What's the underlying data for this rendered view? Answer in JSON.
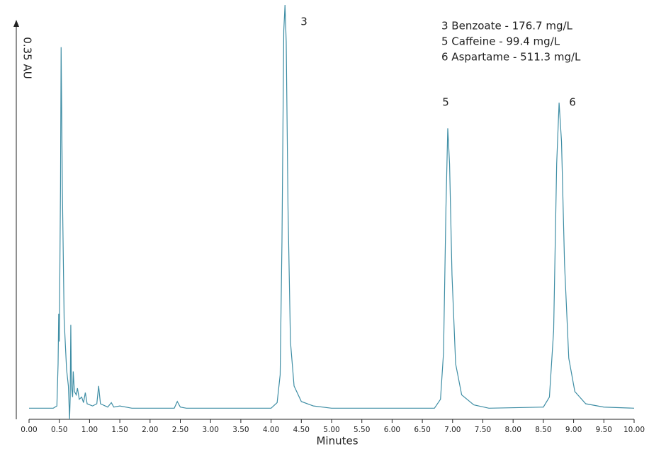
{
  "chart_data": {
    "type": "line",
    "y_label": "0.35 AU",
    "x_label": "Minutes",
    "color": "#3f8ea5",
    "xlim": [
      0,
      10
    ],
    "ylim": [
      -0.01,
      0.37
    ],
    "xticks": [
      {
        "value": 0,
        "label": "0.00"
      },
      {
        "value": 0.5,
        "label": "0.50"
      },
      {
        "value": 1,
        "label": "1.00"
      },
      {
        "value": 1.5,
        "label": "1.50"
      },
      {
        "value": 2,
        "label": "2.00"
      },
      {
        "value": 2.5,
        "label": "2.50"
      },
      {
        "value": 3,
        "label": "3.00"
      },
      {
        "value": 3.5,
        "label": "3.50"
      },
      {
        "value": 4,
        "label": "4.00"
      },
      {
        "value": 4.5,
        "label": "4.50"
      },
      {
        "value": 5,
        "label": "5.00"
      },
      {
        "value": 5.5,
        "label": "5.50"
      },
      {
        "value": 6,
        "label": "6.00"
      },
      {
        "value": 6.5,
        "label": "6.50"
      },
      {
        "value": 7,
        "label": "7.00"
      },
      {
        "value": 7.5,
        "label": "7.50"
      },
      {
        "value": 8,
        "label": "8.00"
      },
      {
        "value": 8.5,
        "label": "8.50"
      },
      {
        "value": 9,
        "label": "9.00"
      },
      {
        "value": 9.5,
        "label": "9.50"
      },
      {
        "value": 10,
        "label": "10.00"
      }
    ],
    "peak_labels": [
      "3",
      "5",
      "6"
    ],
    "notes": [
      "3 Benzoate - 176.7 mg/L",
      "5 Caffeine - 99.4 mg/L",
      "6 Aspartame - 511.3 mg/L"
    ],
    "x": [
      0.0,
      0.4,
      0.46,
      0.48,
      0.49,
      0.5,
      0.52,
      0.53,
      0.55,
      0.58,
      0.62,
      0.65,
      0.67,
      0.68,
      0.69,
      0.7,
      0.72,
      0.73,
      0.75,
      0.78,
      0.8,
      0.83,
      0.87,
      0.9,
      0.93,
      0.96,
      1.05,
      1.12,
      1.15,
      1.18,
      1.3,
      1.36,
      1.4,
      1.5,
      1.7,
      2.4,
      2.45,
      2.5,
      2.6,
      4.0,
      4.1,
      4.15,
      4.18,
      4.21,
      4.23,
      4.25,
      4.28,
      4.32,
      4.38,
      4.5,
      4.7,
      5.0,
      6.7,
      6.8,
      6.85,
      6.89,
      6.92,
      6.95,
      6.99,
      7.05,
      7.15,
      7.35,
      7.6,
      8.5,
      8.6,
      8.67,
      8.72,
      8.76,
      8.8,
      8.85,
      8.92,
      9.02,
      9.2,
      9.5,
      10.0
    ],
    "values": [
      0.0,
      0.0,
      0.002,
      0.04,
      0.085,
      0.06,
      0.2,
      0.325,
      0.2,
      0.08,
      0.035,
      0.02,
      -0.01,
      0.01,
      0.075,
      0.02,
      0.01,
      0.033,
      0.015,
      0.012,
      0.018,
      0.008,
      0.01,
      0.005,
      0.014,
      0.004,
      0.002,
      0.004,
      0.02,
      0.004,
      0.001,
      0.005,
      0.001,
      0.002,
      0.0,
      0.0,
      0.006,
      0.001,
      0.0,
      0.0,
      0.005,
      0.03,
      0.15,
      0.34,
      0.363,
      0.33,
      0.18,
      0.06,
      0.02,
      0.006,
      0.002,
      0.0,
      0.0,
      0.008,
      0.05,
      0.18,
      0.252,
      0.22,
      0.12,
      0.04,
      0.012,
      0.003,
      0.0,
      0.001,
      0.01,
      0.07,
      0.22,
      0.275,
      0.24,
      0.13,
      0.045,
      0.015,
      0.004,
      0.001,
      0.0
    ]
  }
}
